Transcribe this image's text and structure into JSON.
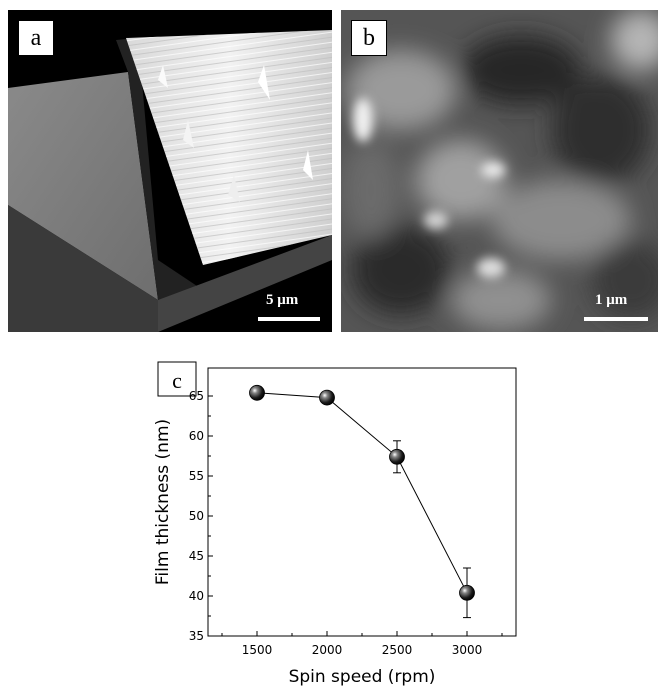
{
  "figure": {
    "panels": [
      {
        "label": "a",
        "scale_bar": "5 μm"
      },
      {
        "label": "b",
        "scale_bar": "1 μm"
      }
    ]
  },
  "chart_data": {
    "type": "line",
    "panel_label": "c",
    "title": "",
    "xlabel": "Spin speed (rpm)",
    "ylabel": "Film thickness (nm)",
    "xlim": [
      1150,
      3350
    ],
    "ylim": [
      35,
      68.5
    ],
    "xticks": [
      1500,
      2000,
      2500,
      3000
    ],
    "yticks": [
      35,
      40,
      45,
      50,
      55,
      60,
      65
    ],
    "grid": false,
    "series": [
      {
        "x": [
          1500,
          2000,
          2500,
          3000
        ],
        "y": [
          65.4,
          64.8,
          57.4,
          40.4
        ],
        "error": [
          0,
          0,
          2.0,
          3.1
        ]
      }
    ],
    "colors": {
      "line": "#000000",
      "marker": "#1a1a1a"
    }
  }
}
